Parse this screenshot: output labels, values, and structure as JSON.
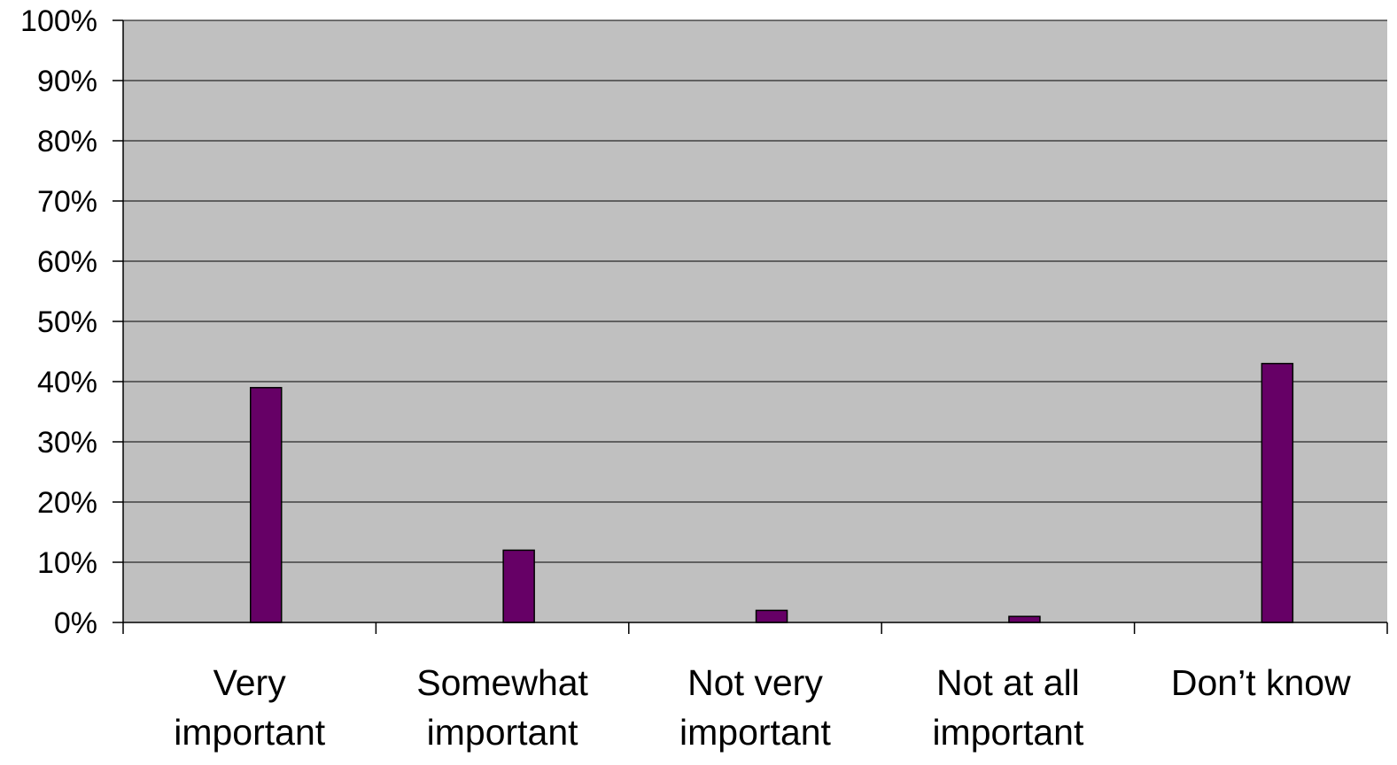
{
  "chart_data": {
    "type": "bar",
    "categories": [
      [
        "Very",
        "important"
      ],
      [
        "Somewhat",
        "important"
      ],
      [
        "Not very",
        "important"
      ],
      [
        "Not at all",
        "important"
      ],
      [
        "Don’t know"
      ]
    ],
    "category_labels": [
      "Very important",
      "Somewhat important",
      "Not very important",
      "Not at all important",
      "Don’t know"
    ],
    "values": [
      39,
      12,
      2,
      1,
      43
    ],
    "ylim": [
      0,
      100
    ],
    "yticks": [
      0,
      10,
      20,
      30,
      40,
      50,
      60,
      70,
      80,
      90,
      100
    ],
    "ytick_labels": [
      "0%",
      "10%",
      "20%",
      "30%",
      "40%",
      "50%",
      "60%",
      "70%",
      "80%",
      "90%",
      "100%"
    ],
    "title": "",
    "xlabel": "",
    "ylabel": "",
    "grid": true,
    "legend": "none",
    "colors": {
      "bar": "#660066",
      "plot_background": "#c0c0c0",
      "gridline": "#000000"
    }
  }
}
